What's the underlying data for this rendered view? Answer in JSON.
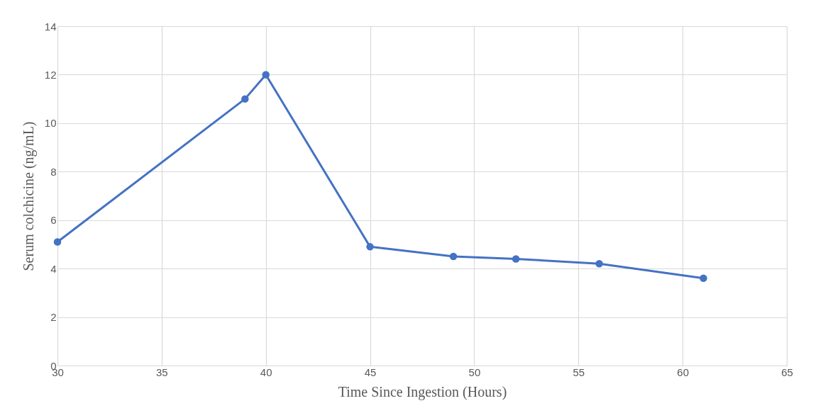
{
  "chart_data": {
    "type": "line",
    "xlabel": "Time Since Ingestion (Hours)",
    "ylabel": "Serum colchicine (ng/mL)",
    "x": [
      30,
      39,
      40,
      45,
      49,
      52,
      56,
      61
    ],
    "series": [
      {
        "color": "#4472c4",
        "values": [
          5.1,
          11,
          12,
          4.9,
          4.5,
          4.4,
          4.2,
          3.6
        ]
      }
    ],
    "xlim": [
      30,
      65
    ],
    "xticks": [
      30,
      35,
      40,
      45,
      50,
      55,
      60,
      65
    ],
    "ylim": [
      0,
      14
    ],
    "yticks": [
      0,
      2,
      4,
      6,
      8,
      10,
      12,
      14
    ],
    "grid": true,
    "marker": "circle",
    "line_style": "solid"
  }
}
